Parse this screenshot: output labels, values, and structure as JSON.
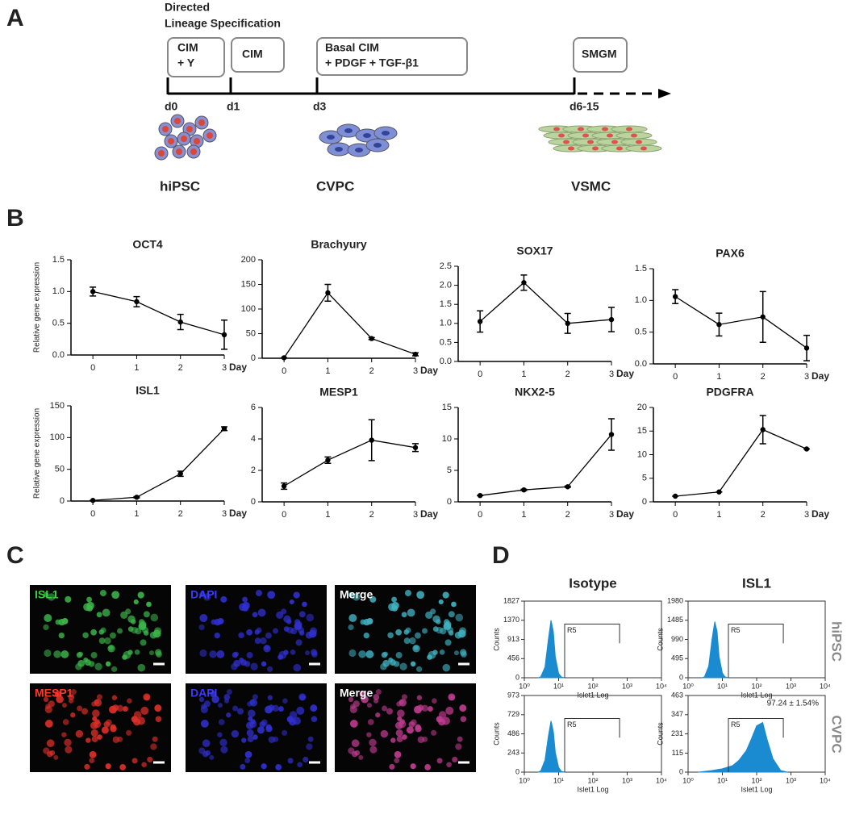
{
  "panels": [
    "A",
    "B",
    "C",
    "D"
  ],
  "timeline": {
    "header": [
      "Directed",
      "Lineage Specification"
    ],
    "boxes": [
      [
        "CIM",
        "+ Y"
      ],
      [
        "CIM"
      ],
      [
        "Basal CIM",
        "+ PDGF + TGF-β1"
      ],
      [
        "SMGM"
      ]
    ],
    "days": [
      "d0",
      "d1",
      "d3",
      "d6-15"
    ],
    "cells": [
      "hiPSC",
      "CVPC",
      "VSMC"
    ]
  },
  "images": {
    "labels": [
      [
        "ISL1",
        "DAPI",
        "Merge"
      ],
      [
        "MESP1",
        "DAPI",
        "Merge"
      ]
    ]
  },
  "flow": {
    "columns": [
      "Isotype",
      "ISL1"
    ],
    "rows": [
      "hiPSC",
      "CVPC"
    ]
  },
  "chart_data": [
    {
      "type": "line",
      "title": "OCT4",
      "y_label": "Relative gene expression",
      "x_label": "Day",
      "x": [
        0,
        1,
        2,
        3
      ],
      "values": [
        1.0,
        0.84,
        0.52,
        0.32
      ],
      "errors": [
        0.07,
        0.08,
        0.12,
        0.23
      ],
      "color": "#000000",
      "xlim": [
        -0.5,
        3
      ],
      "xticks": [
        0,
        1,
        2,
        3
      ],
      "ylim": [
        0,
        1.5
      ],
      "yticks": [
        {
          "value": 0,
          "label": "0.0"
        },
        0.5,
        {
          "value": 1,
          "label": "1.0"
        },
        1.5
      ]
    },
    {
      "type": "line",
      "title": "Brachyury",
      "x_label": "Day",
      "x": [
        0,
        1,
        2,
        3
      ],
      "values": [
        1,
        133,
        40,
        8
      ],
      "errors": [
        0,
        17,
        2,
        3
      ],
      "color": "#000000",
      "xlim": [
        -0.5,
        3
      ],
      "xticks": [
        0,
        1,
        2,
        3
      ],
      "ylim": [
        0,
        200
      ],
      "yticks": [
        0,
        50,
        100,
        150,
        200
      ]
    },
    {
      "type": "line",
      "title": "SOX17",
      "x_label": "Day",
      "x": [
        0,
        1,
        2,
        3
      ],
      "values": [
        1.05,
        2.07,
        1.0,
        1.1
      ],
      "errors": [
        0.28,
        0.2,
        0.26,
        0.32
      ],
      "color": "#000000",
      "xlim": [
        -0.5,
        3
      ],
      "xticks": [
        0,
        1,
        2,
        3
      ],
      "ylim": [
        0,
        2.5
      ],
      "yticks": [
        {
          "value": 0,
          "label": "0.0"
        },
        0.5,
        {
          "value": 1,
          "label": "1.0"
        },
        1.5,
        {
          "value": 2,
          "label": "2.0"
        },
        2.5
      ]
    },
    {
      "type": "line",
      "title": "PAX6",
      "x_label": "Day",
      "x": [
        0,
        1,
        2,
        3
      ],
      "values": [
        1.06,
        0.62,
        0.74,
        0.25
      ],
      "errors": [
        0.11,
        0.18,
        0.4,
        0.2
      ],
      "color": "#000000",
      "xlim": [
        -0.5,
        3
      ],
      "xticks": [
        0,
        1,
        2,
        3
      ],
      "ylim": [
        0,
        1.5
      ],
      "yticks": [
        {
          "value": 0,
          "label": "0.0"
        },
        0.5,
        {
          "value": 1,
          "label": "1.0"
        },
        1.5
      ]
    },
    {
      "type": "line",
      "title": "ISL1",
      "y_label": "Relative gene expression",
      "x_label": "Day",
      "x": [
        0,
        1,
        2,
        3
      ],
      "values": [
        1,
        6,
        43,
        114
      ],
      "errors": [
        0,
        1,
        4,
        3
      ],
      "color": "#000000",
      "xlim": [
        -0.5,
        3
      ],
      "xticks": [
        0,
        1,
        2,
        3
      ],
      "ylim": [
        0,
        150
      ],
      "yticks": [
        0,
        50,
        100,
        150
      ]
    },
    {
      "type": "line",
      "title": "MESP1",
      "x_label": "Day",
      "x": [
        0,
        1,
        2,
        3
      ],
      "values": [
        1.0,
        2.65,
        3.92,
        3.45
      ],
      "errors": [
        0.2,
        0.2,
        1.3,
        0.25
      ],
      "color": "#000000",
      "xlim": [
        -0.5,
        3
      ],
      "xticks": [
        0,
        1,
        2,
        3
      ],
      "ylim": [
        0,
        6
      ],
      "yticks": [
        0,
        2,
        4,
        6
      ]
    },
    {
      "type": "line",
      "title": "NKX2-5",
      "x_label": "Day",
      "x": [
        0,
        1,
        2,
        3
      ],
      "values": [
        1,
        1.9,
        2.4,
        10.7
      ],
      "errors": [
        0,
        0.1,
        0.1,
        2.5
      ],
      "color": "#000000",
      "xlim": [
        -0.5,
        3
      ],
      "xticks": [
        0,
        1,
        2,
        3
      ],
      "ylim": [
        0,
        15
      ],
      "yticks": [
        0,
        5,
        10,
        15
      ]
    },
    {
      "type": "line",
      "title": "PDGFRA",
      "x_label": "Day",
      "x": [
        0,
        1,
        2,
        3
      ],
      "values": [
        1.2,
        2.1,
        15.3,
        11.2
      ],
      "errors": [
        0,
        0,
        3,
        0
      ],
      "color": "#000000",
      "xlim": [
        -0.5,
        3
      ],
      "xticks": [
        0,
        1,
        2,
        3
      ],
      "ylim": [
        0,
        20
      ],
      "yticks": [
        0,
        5,
        10,
        15,
        20
      ]
    },
    {
      "type": "histogram",
      "x_label": "Islet1 Log",
      "y_label": "Counts",
      "xscale": "log",
      "color": "#1a8bd1",
      "x": [
        2.5,
        3,
        4,
        5,
        6,
        7,
        8,
        10,
        12,
        15
      ],
      "values": [
        0,
        20,
        250,
        900,
        1370,
        1100,
        500,
        100,
        20,
        0
      ],
      "xlim": [
        1,
        10000
      ],
      "xticks": [
        {
          "value": 1,
          "label": "10⁰"
        },
        {
          "value": 10,
          "label": "10¹"
        },
        {
          "value": 100,
          "label": "10²"
        },
        {
          "value": 1000,
          "label": "10³"
        },
        {
          "value": 10000,
          "label": "10⁴"
        }
      ],
      "ylim": [
        0,
        1827
      ],
      "yticks": [
        0,
        456,
        913,
        1370,
        1827
      ],
      "gate": {
        "label": "R5",
        "range": [
          15,
          600
        ]
      }
    },
    {
      "type": "histogram",
      "x_label": "Islet1 Log",
      "y_label": "Counts",
      "xscale": "log",
      "color": "#1a8bd1",
      "x": [
        2.5,
        3,
        4,
        5,
        6,
        7,
        8,
        10,
        12,
        15
      ],
      "values": [
        0,
        20,
        300,
        1000,
        1450,
        1200,
        550,
        120,
        20,
        0
      ],
      "xlim": [
        1,
        10000
      ],
      "xticks": [
        {
          "value": 1,
          "label": "10⁰"
        },
        {
          "value": 10,
          "label": "10¹"
        },
        {
          "value": 100,
          "label": "10²"
        },
        {
          "value": 1000,
          "label": "10³"
        },
        {
          "value": 10000,
          "label": "10⁴"
        }
      ],
      "ylim": [
        0,
        1980
      ],
      "yticks": [
        0,
        495,
        990,
        1485,
        1980
      ],
      "gate": {
        "label": "R5",
        "range": [
          15,
          600
        ]
      }
    },
    {
      "type": "histogram",
      "x_label": "Islet1 Log",
      "y_label": "Counts",
      "xscale": "log",
      "color": "#1a8bd1",
      "x": [
        2.5,
        3,
        4,
        5,
        6,
        7,
        8,
        10,
        12,
        15
      ],
      "values": [
        0,
        15,
        150,
        450,
        650,
        520,
        250,
        60,
        10,
        0
      ],
      "xlim": [
        1,
        10000
      ],
      "xticks": [
        {
          "value": 1,
          "label": "10⁰"
        },
        {
          "value": 10,
          "label": "10¹"
        },
        {
          "value": 100,
          "label": "10²"
        },
        {
          "value": 1000,
          "label": "10³"
        },
        {
          "value": 10000,
          "label": "10⁴"
        }
      ],
      "ylim": [
        0,
        973
      ],
      "yticks": [
        0,
        243,
        486,
        729,
        973
      ],
      "gate": {
        "label": "R5",
        "range": [
          15,
          600
        ]
      }
    },
    {
      "type": "histogram",
      "x_label": "Islet1 Log",
      "y_label": "Counts",
      "xscale": "log",
      "color": "#1a8bd1",
      "x": [
        2,
        5,
        10,
        20,
        30,
        50,
        70,
        100,
        150,
        200,
        300,
        500,
        800
      ],
      "values": [
        0,
        10,
        20,
        40,
        70,
        130,
        200,
        280,
        300,
        200,
        80,
        10,
        0
      ],
      "xlim": [
        1,
        10000
      ],
      "xticks": [
        {
          "value": 1,
          "label": "10⁰"
        },
        {
          "value": 10,
          "label": "10¹"
        },
        {
          "value": 100,
          "label": "10²"
        },
        {
          "value": 1000,
          "label": "10³"
        },
        {
          "value": 10000,
          "label": "10⁴"
        }
      ],
      "ylim": [
        0,
        463
      ],
      "yticks": [
        0,
        115,
        231,
        347,
        463
      ],
      "gate": {
        "label": "R5",
        "range": [
          15,
          600
        ]
      },
      "annotation": "97.24 ± 1.54%"
    }
  ]
}
